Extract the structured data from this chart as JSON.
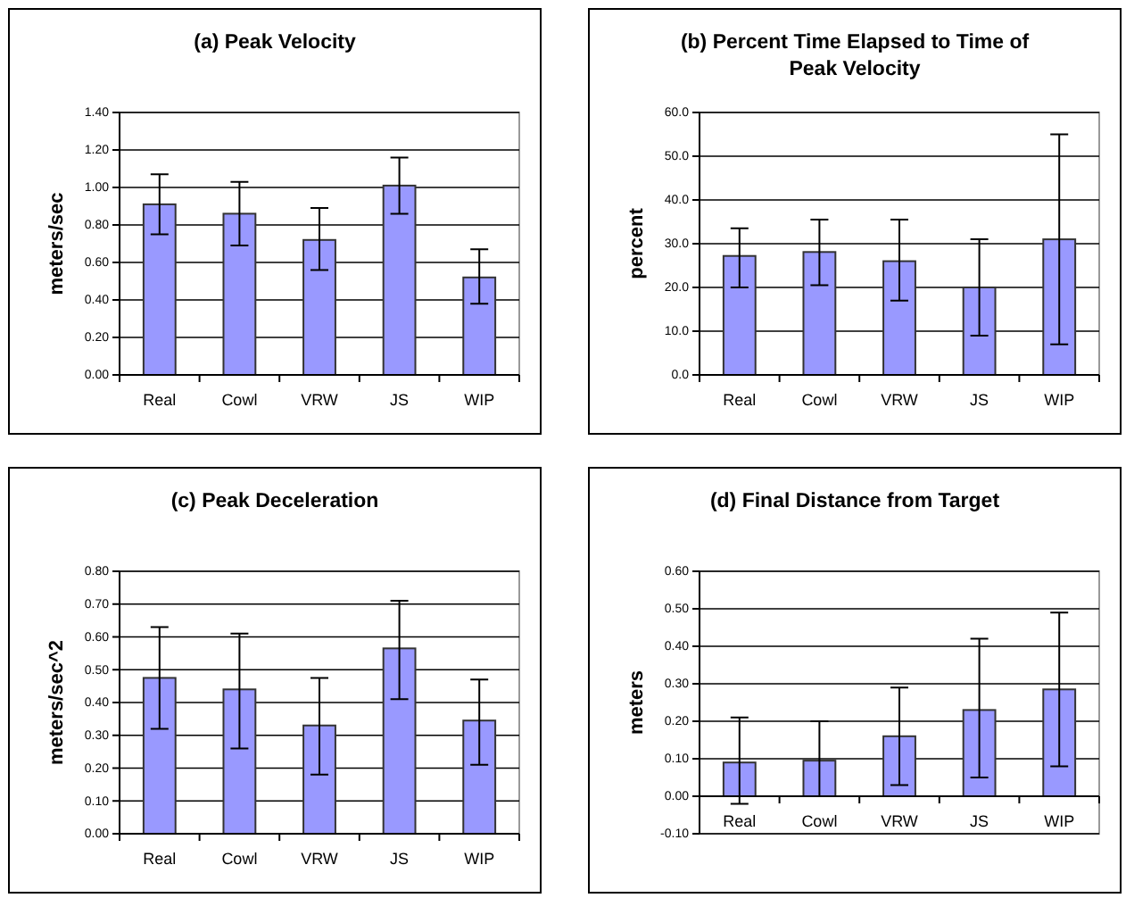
{
  "chart_data": [
    {
      "type": "bar",
      "title": "(a) Peak Velocity",
      "ylabel": "meters/sec",
      "categories": [
        "Real",
        "Cowl",
        "VRW",
        "JS",
        "WIP"
      ],
      "values": [
        0.91,
        0.86,
        0.72,
        1.01,
        0.52
      ],
      "color": "#9999ff",
      "errors": [
        [
          0.75,
          1.07
        ],
        [
          0.69,
          1.03
        ],
        [
          0.56,
          0.89
        ],
        [
          0.86,
          1.16
        ],
        [
          0.38,
          0.67
        ]
      ],
      "ylim": [
        0,
        1.4
      ],
      "yticks": [
        {
          "value": 0,
          "label": "0.00"
        },
        {
          "value": 0.2,
          "label": "0.20"
        },
        {
          "value": 0.4,
          "label": "0.40"
        },
        {
          "value": 0.6,
          "label": "0.60"
        },
        {
          "value": 0.8,
          "label": "0.80"
        },
        {
          "value": 1,
          "label": "1.00"
        },
        {
          "value": 1.2,
          "label": "1.20"
        },
        {
          "value": 1.4,
          "label": "1.40"
        }
      ],
      "grid": "y"
    },
    {
      "type": "bar",
      "title": "(b) Percent Time Elapsed to Time of Peak Velocity",
      "ylabel": "percent",
      "categories": [
        "Real",
        "Cowl",
        "VRW",
        "JS",
        "WIP"
      ],
      "values": [
        27.2,
        28.1,
        26,
        20,
        31
      ],
      "color": "#9999ff",
      "errors": [
        [
          20,
          33.5
        ],
        [
          20.5,
          35.5
        ],
        [
          17,
          35.5
        ],
        [
          9,
          31
        ],
        [
          7,
          55
        ]
      ],
      "ylim": [
        0,
        60
      ],
      "yticks": [
        {
          "value": 0,
          "label": "0.0"
        },
        {
          "value": 10,
          "label": "10.0"
        },
        {
          "value": 20,
          "label": "20.0"
        },
        {
          "value": 30,
          "label": "30.0"
        },
        {
          "value": 40,
          "label": "40.0"
        },
        {
          "value": 50,
          "label": "50.0"
        },
        {
          "value": 60,
          "label": "60.0"
        }
      ],
      "grid": "y"
    },
    {
      "type": "bar",
      "title": "(c) Peak Deceleration",
      "ylabel": "meters/sec^2",
      "categories": [
        "Real",
        "Cowl",
        "VRW",
        "JS",
        "WIP"
      ],
      "values": [
        0.475,
        0.44,
        0.33,
        0.565,
        0.345
      ],
      "color": "#9999ff",
      "errors": [
        [
          0.32,
          0.63
        ],
        [
          0.26,
          0.61
        ],
        [
          0.18,
          0.475
        ],
        [
          0.41,
          0.71
        ],
        [
          0.21,
          0.47
        ]
      ],
      "ylim": [
        0,
        0.8
      ],
      "yticks": [
        {
          "value": 0,
          "label": "0.00"
        },
        {
          "value": 0.1,
          "label": "0.10"
        },
        {
          "value": 0.2,
          "label": "0.20"
        },
        {
          "value": 0.3,
          "label": "0.30"
        },
        {
          "value": 0.4,
          "label": "0.40"
        },
        {
          "value": 0.5,
          "label": "0.50"
        },
        {
          "value": 0.6,
          "label": "0.60"
        },
        {
          "value": 0.7,
          "label": "0.70"
        },
        {
          "value": 0.8,
          "label": "0.80"
        }
      ],
      "grid": "y"
    },
    {
      "type": "bar",
      "title": "(d) Final Distance from Target",
      "ylabel": "meters",
      "categories": [
        "Real",
        "Cowl",
        "VRW",
        "JS",
        "WIP"
      ],
      "values": [
        0.09,
        0.095,
        0.16,
        0.23,
        0.285
      ],
      "color": "#9999ff",
      "errors": [
        [
          -0.02,
          0.21
        ],
        [
          0,
          0.2
        ],
        [
          0.03,
          0.29
        ],
        [
          0.05,
          0.42
        ],
        [
          0.08,
          0.49
        ]
      ],
      "ylim": [
        -0.1,
        0.6
      ],
      "yticks": [
        {
          "value": -0.1,
          "label": "-0.10"
        },
        {
          "value": 0,
          "label": "0.00"
        },
        {
          "value": 0.1,
          "label": "0.10"
        },
        {
          "value": 0.2,
          "label": "0.20"
        },
        {
          "value": 0.3,
          "label": "0.30"
        },
        {
          "value": 0.4,
          "label": "0.40"
        },
        {
          "value": 0.5,
          "label": "0.50"
        },
        {
          "value": 0.6,
          "label": "0.60"
        }
      ],
      "grid": "y"
    }
  ]
}
